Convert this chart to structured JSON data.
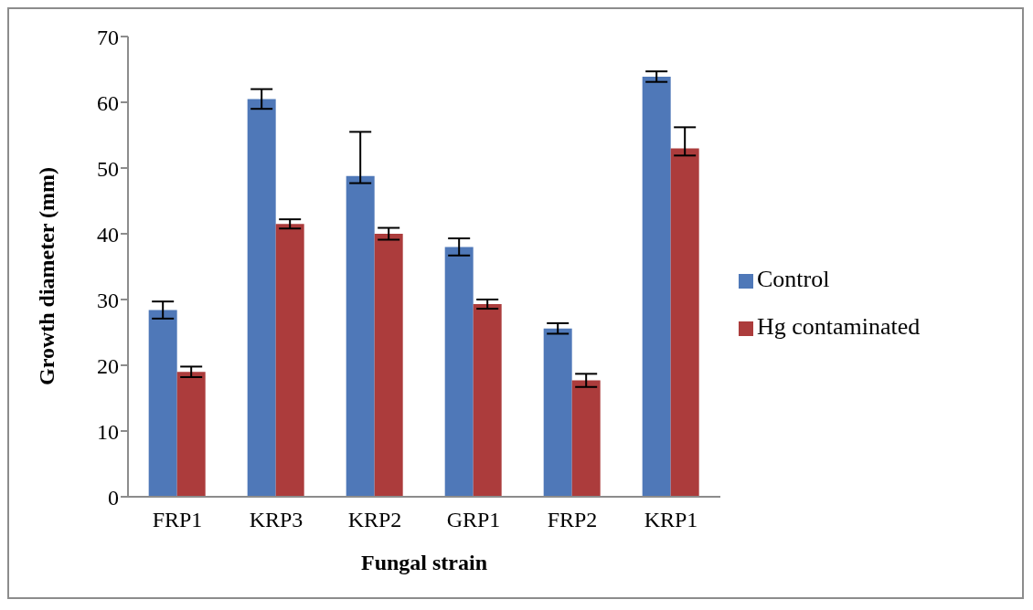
{
  "chart_data": {
    "type": "bar",
    "xlabel": "Fungal strain",
    "ylabel": "Growth diameter (mm)",
    "categories": [
      "FRP1",
      "KRP3",
      "KRP2",
      "GRP1",
      "FRP2",
      "KRP1"
    ],
    "series": [
      {
        "name": "Control",
        "color": "#4f78b8",
        "values": [
          28.4,
          60.5,
          48.8,
          38.0,
          25.6,
          63.9
        ],
        "errors": [
          1.3,
          1.5,
          [
            47.7,
            55.5
          ],
          1.3,
          0.8,
          0.8
        ]
      },
      {
        "name": "Hg contaminated",
        "color": "#ac3c3c",
        "values": [
          19.0,
          41.5,
          40.0,
          29.3,
          17.7,
          53.0
        ],
        "errors": [
          0.8,
          0.7,
          0.9,
          0.7,
          1.0,
          [
            51.9,
            56.2
          ]
        ]
      }
    ],
    "ylim": [
      0,
      70
    ],
    "yticks": [
      0,
      10,
      20,
      30,
      40,
      50,
      60,
      70
    ],
    "grid": false,
    "legend": "right"
  }
}
